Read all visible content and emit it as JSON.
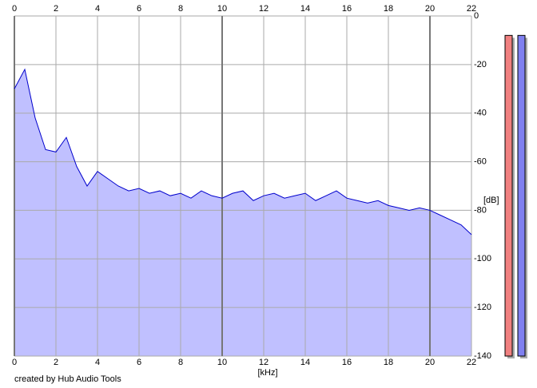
{
  "chart_data": {
    "type": "area",
    "xlabel": "[kHz]",
    "ylabel": "[dB]",
    "footer": "created by Hub Audio Tools",
    "x": [
      0,
      0.5,
      1,
      1.5,
      2,
      2.5,
      3,
      3.5,
      4,
      4.5,
      5,
      5.5,
      6,
      6.5,
      7,
      7.5,
      8,
      8.5,
      9,
      9.5,
      10,
      10.5,
      11,
      11.5,
      12,
      12.5,
      13,
      13.5,
      14,
      14.5,
      15,
      15.5,
      16,
      16.5,
      17,
      17.5,
      18,
      18.5,
      19,
      19.5,
      20,
      20.5,
      21,
      21.5,
      22
    ],
    "values": [
      -30,
      -22,
      -42,
      -55,
      -56,
      -50,
      -62,
      -70,
      -64,
      -67,
      -70,
      -72,
      -71,
      -73,
      -72,
      -74,
      -73,
      -75,
      -72,
      -74,
      -75,
      -73,
      -72,
      -76,
      -74,
      -73,
      -75,
      -74,
      -73,
      -76,
      -74,
      -72,
      -75,
      -76,
      -77,
      -76,
      -78,
      -79,
      -80,
      -79,
      -80,
      -82,
      -84,
      -86,
      -90
    ],
    "color": "#0000cc",
    "fill": "#c0c0ff",
    "xlim": [
      0,
      22
    ],
    "xticks": [
      0,
      2,
      4,
      6,
      8,
      10,
      12,
      14,
      16,
      18,
      20,
      22
    ],
    "ylim": [
      -140,
      0
    ],
    "yticks": [
      0,
      -20,
      -40,
      -60,
      -80,
      -100,
      -120,
      -140
    ],
    "grid": true,
    "levels": [
      {
        "color": "#f08080",
        "value": -8
      },
      {
        "color": "#8080f0",
        "value": -8
      }
    ]
  }
}
